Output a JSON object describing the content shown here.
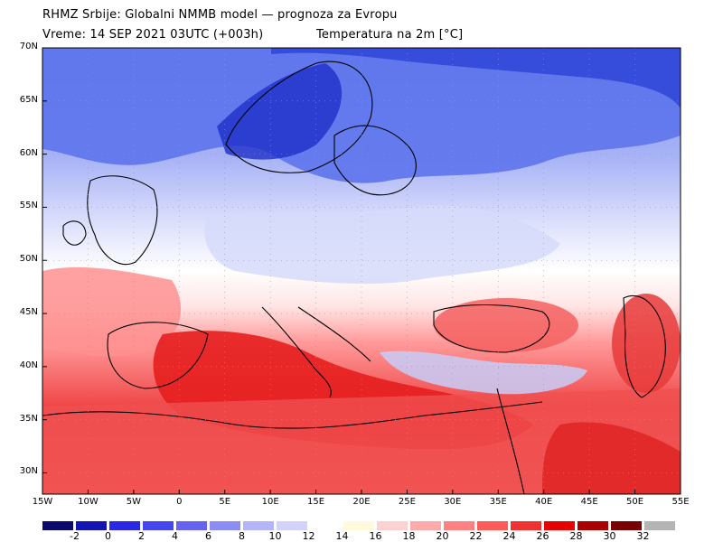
{
  "header": {
    "line1": "RHMZ Srbije: Globalni NMMB model — prognoza za Evropu",
    "line2_left": "Vreme: 14 SEP 2021 03UTC (+003h)",
    "line2_right": "Temperatura na 2m [°C]"
  },
  "map": {
    "lat_labels": [
      "70N",
      "65N",
      "60N",
      "55N",
      "50N",
      "45N",
      "40N",
      "35N",
      "30N"
    ],
    "lon_labels": [
      "15W",
      "10W",
      "5W",
      "0",
      "5E",
      "10E",
      "15E",
      "20E",
      "25E",
      "30E",
      "35E",
      "40E",
      "45E",
      "50E",
      "55E"
    ],
    "lat_values": [
      70,
      65,
      60,
      55,
      50,
      45,
      40,
      35,
      30
    ],
    "lon_values": [
      -15,
      -10,
      -5,
      0,
      5,
      10,
      15,
      20,
      25,
      30,
      35,
      40,
      45,
      50,
      55
    ]
  },
  "colorbar": {
    "labels": [
      "-2",
      "0",
      "2",
      "4",
      "6",
      "8",
      "10",
      "12",
      "14",
      "16",
      "18",
      "20",
      "22",
      "24",
      "26",
      "28",
      "30",
      "32"
    ],
    "colors": [
      "#0a0a6e",
      "#1414b4",
      "#2828e6",
      "#4646f0",
      "#6464f0",
      "#8c8cf5",
      "#b4b4fa",
      "#d2d2fa",
      "#ffffff",
      "#fffadc",
      "#ffd2d2",
      "#ffaaaa",
      "#ff8282",
      "#ff5a5a",
      "#f03232",
      "#e60000",
      "#aa0000",
      "#780000",
      "#b4b4b4"
    ]
  },
  "colors": {
    "cold": "#3c50dc",
    "warm": "#e62828",
    "neutral": "#ffffff"
  }
}
